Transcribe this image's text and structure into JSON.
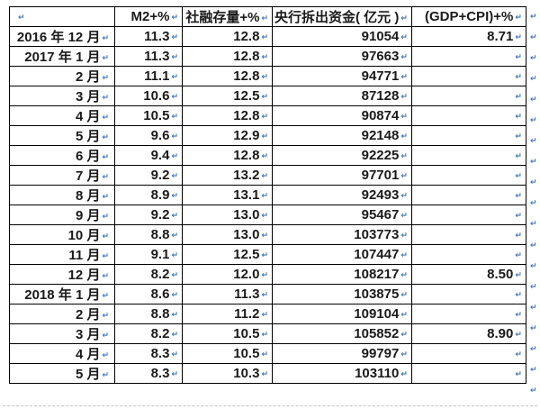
{
  "table": {
    "columns": [
      "",
      "M2+%",
      "社融存量+%",
      "央行拆出资金( 亿元 )",
      "(GDP+CPI)+%"
    ],
    "rows": [
      [
        "2016 年 12 月",
        "11.3",
        "12.8",
        "91054",
        "8.71"
      ],
      [
        "2017 年 1 月",
        "11.3",
        "12.8",
        "97663",
        ""
      ],
      [
        "2 月",
        "11.1",
        "12.8",
        "94771",
        ""
      ],
      [
        "3 月",
        "10.6",
        "12.5",
        "87128",
        ""
      ],
      [
        "4 月",
        "10.5",
        "12.8",
        "90874",
        ""
      ],
      [
        "5 月",
        "9.6",
        "12.9",
        "92148",
        ""
      ],
      [
        "6 月",
        "9.4",
        "12.8",
        "92225",
        ""
      ],
      [
        "7 月",
        "9.2",
        "13.2",
        "97701",
        ""
      ],
      [
        "8 月",
        "8.9",
        "13.1",
        "92493",
        ""
      ],
      [
        "9 月",
        "9.2",
        "13.0",
        "95467",
        ""
      ],
      [
        "10 月",
        "8.8",
        "13.0",
        "103773",
        ""
      ],
      [
        "11 月",
        "9.1",
        "12.5",
        "107447",
        ""
      ],
      [
        "12 月",
        "8.2",
        "12.0",
        "108217",
        "8.50"
      ],
      [
        "2018 年 1 月",
        "8.6",
        "11.3",
        "103875",
        ""
      ],
      [
        "2 月",
        "8.8",
        "11.2",
        "109104",
        ""
      ],
      [
        "3 月",
        "8.2",
        "10.5",
        "105852",
        "8.90"
      ],
      [
        "4 月",
        "8.3",
        "10.5",
        "99797",
        ""
      ],
      [
        "5 月",
        "8.3",
        "10.3",
        "103110",
        ""
      ]
    ]
  },
  "marks": {
    "cell_end": "↵",
    "row_end": "↵"
  },
  "colors": {
    "mark": "#3d74c4",
    "border": "#000000",
    "text": "#1a1a1a",
    "background": "#ffffff",
    "boundary_line": "#c4c4c4"
  }
}
